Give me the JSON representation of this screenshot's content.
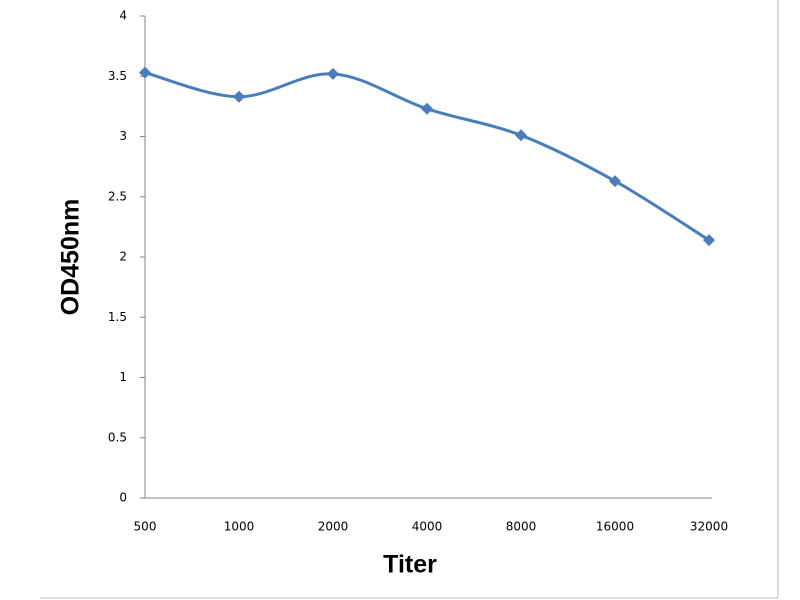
{
  "chart_data": {
    "type": "line",
    "x_label": "Titer",
    "y_label": "OD450nm",
    "categories": [
      "500",
      "1000",
      "2000",
      "4000",
      "8000",
      "16000",
      "32000"
    ],
    "series": [
      {
        "name": "OD450nm",
        "color": "#4a7ebb",
        "values": [
          3.53,
          3.33,
          3.52,
          3.23,
          3.01,
          2.63,
          2.14
        ]
      }
    ],
    "ylim": [
      0,
      4
    ],
    "yticks": [
      0,
      0.5,
      1,
      1.5,
      2,
      2.5,
      3,
      3.5,
      4
    ],
    "grid": false
  }
}
